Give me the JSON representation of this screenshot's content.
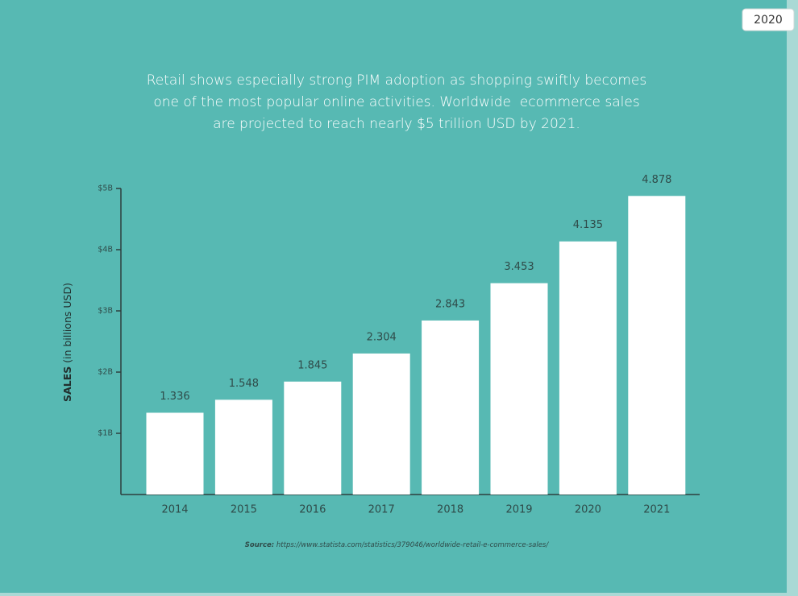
{
  "badge": "2020",
  "chart_data": {
    "type": "bar",
    "title": [
      "Retail shows especially strong PIM adoption as shopping swiftly becomes",
      "one of the most popular online activities. Worldwide  ecommerce sales",
      "are projected to reach nearly $5 trillion USD by 2021."
    ],
    "y_label_bold": "SALES",
    "y_label": "(in billions USD)",
    "categories": [
      "2014",
      "2015",
      "2016",
      "2017",
      "2018",
      "2019",
      "2020",
      "2021"
    ],
    "values": [
      1.336,
      1.548,
      1.845,
      2.304,
      2.843,
      3.453,
      4.135,
      4.878
    ],
    "color": "#ffffff",
    "ylim": [
      0,
      5
    ],
    "yticks": [
      {
        "value": 1,
        "label": "$1B"
      },
      {
        "value": 2,
        "label": "$2B"
      },
      {
        "value": 3,
        "label": "$3B"
      },
      {
        "value": 4,
        "label": "$4B"
      },
      {
        "value": 5,
        "label": "$5B"
      }
    ],
    "grid": false,
    "source_label": "Source:",
    "source_url": "https://www.statista.com/statistics/379046/worldwide-retail-e-commerce-sales/"
  }
}
